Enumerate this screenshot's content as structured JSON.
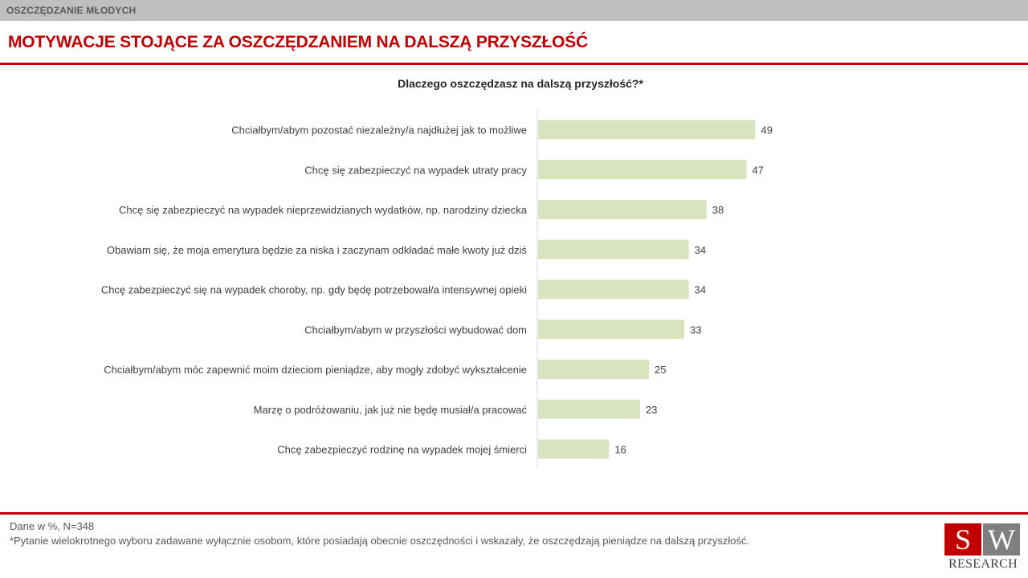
{
  "header": {
    "section_label": "OSZCZĘDZANIE MŁODYCH",
    "title": "MOTYWACJE STOJĄCE ZA OSZCZĘDZANIEM NA DALSZĄ PRZYSZŁOŚĆ"
  },
  "colors": {
    "accent": "#c00000",
    "bar": "#d7e4bd",
    "top_bar": "#bfbfbf"
  },
  "chart_data": {
    "type": "bar",
    "orientation": "horizontal",
    "title": "Dlaczego oszczędzasz na dalszą przyszłość?*",
    "xlabel": "",
    "ylabel": "",
    "xlim": [
      0,
      50
    ],
    "grid": false,
    "legend": "none",
    "categories": [
      "Chciałbym/abym pozostać niezależny/a najdłużej jak to możliwe",
      "Chcę się zabezpieczyć na wypadek utraty pracy",
      "Chcę się zabezpieczyć na wypadek nieprzewidzianych wydatków, np. narodziny dziecka",
      "Obawiam się, że moja emerytura będzie za niska i zaczynam odkładać małe kwoty już dziś",
      "Chcę zabezpieczyć się na wypadek choroby, np. gdy będę potrzebował/a intensywnej opieki",
      "Chciałbym/abym w przyszłości wybudować dom",
      "Chciałbym/abym móc zapewnić moim dzieciom pieniądze, aby mogły zdobyć wykształcenie",
      "Marzę o podróżowaniu, jak już nie będę musiał/a pracować",
      "Chcę zabezpieczyć rodzinę na wypadek mojej śmierci"
    ],
    "values": [
      49,
      47,
      38,
      34,
      34,
      33,
      25,
      23,
      16
    ]
  },
  "footer": {
    "data_note": "Dane w %, N=348",
    "question_note": "*Pytanie wielokrotnego wyboru zadawane wyłącznie osobom, które posiadają obecnie oszczędności i wskazały, że oszczędzają pieniądze na dalszą przyszłość.",
    "logo": {
      "letter_left": "S",
      "letter_right": "W",
      "text": "RESEARCH"
    }
  }
}
